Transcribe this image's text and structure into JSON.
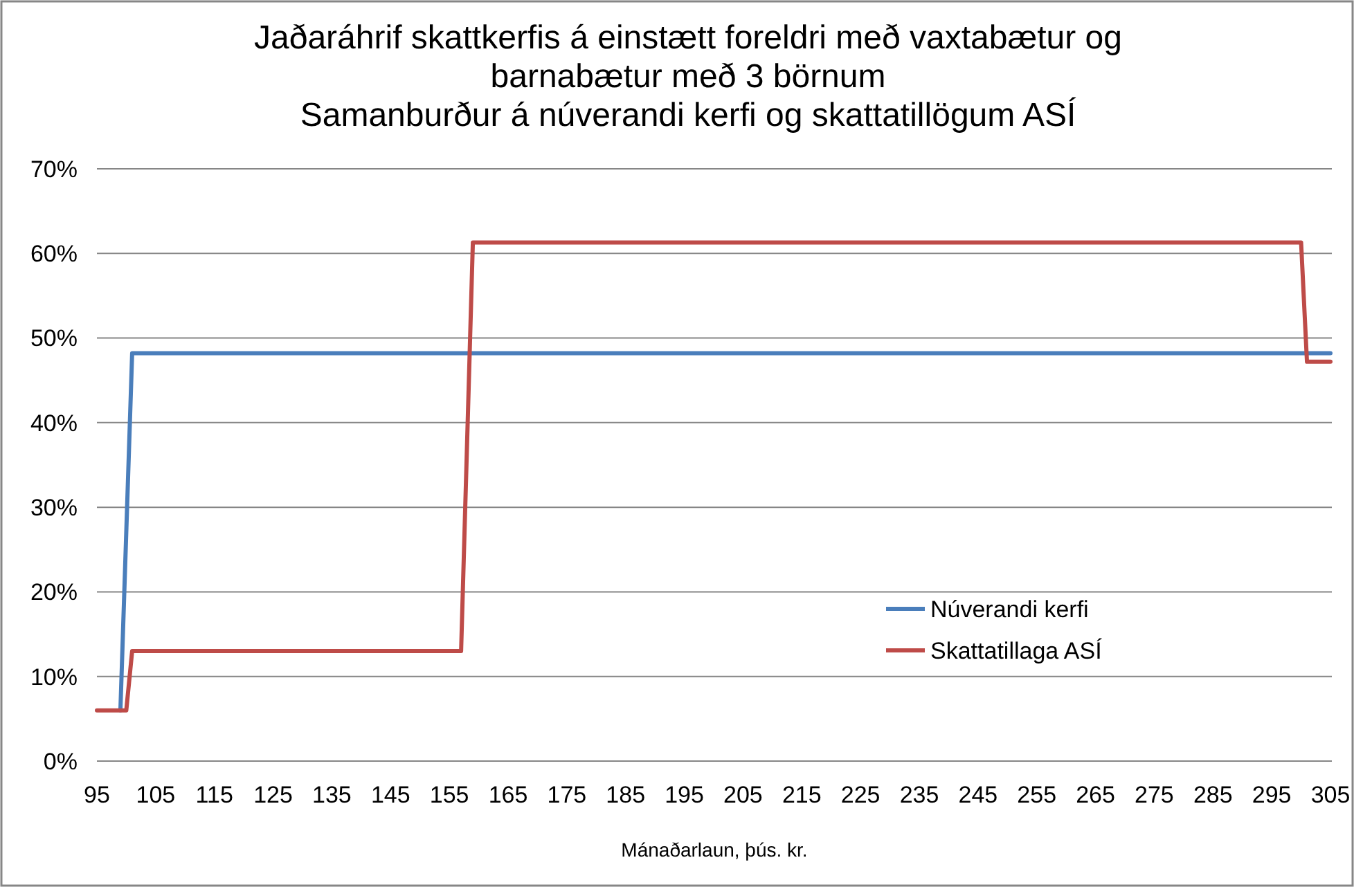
{
  "chart_data": {
    "type": "line",
    "title": "Jaðaráhrif skattkerfis á einstætt foreldri með vaxtabætur og\nbarnabætur með 3 börnum\nSamanburður á núverandi kerfi og skattatillögum ASÍ",
    "xlabel": "Mánaðarlaun, þús. kr.",
    "series": [
      {
        "name": "Núverandi kerfi",
        "color": "#4a7ebb",
        "x": [
          99,
          101,
          305
        ],
        "values": [
          6,
          48.2,
          48.2
        ]
      },
      {
        "name": "Skattatillaga ASÍ",
        "color": "#be4b48",
        "x": [
          95,
          100,
          101,
          157,
          159,
          300,
          301,
          305
        ],
        "values": [
          6,
          6,
          13,
          13,
          61.3,
          61.3,
          47.2,
          47.2
        ]
      }
    ],
    "xlim": [
      95,
      305
    ],
    "xticks": [
      95,
      105,
      115,
      125,
      135,
      145,
      155,
      165,
      175,
      185,
      195,
      205,
      215,
      225,
      235,
      245,
      255,
      265,
      275,
      285,
      295,
      305
    ],
    "ylim": [
      0,
      70
    ],
    "yticks": [
      {
        "value": 0,
        "label": "0%"
      },
      {
        "value": 10,
        "label": "10%"
      },
      {
        "value": 20,
        "label": "20%"
      },
      {
        "value": 30,
        "label": "30%"
      },
      {
        "value": 40,
        "label": "40%"
      },
      {
        "value": 50,
        "label": "50%"
      },
      {
        "value": 60,
        "label": "60%"
      },
      {
        "value": 70,
        "label": "70%"
      }
    ],
    "grid": "y",
    "legend": "bottom right",
    "marker": "none",
    "line_style": "solid"
  }
}
